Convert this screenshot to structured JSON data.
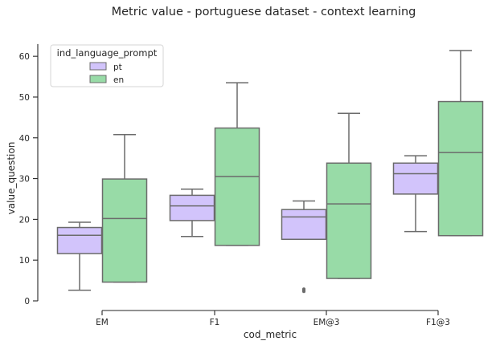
{
  "chart_data": {
    "type": "box",
    "title": "Metric value - portuguese dataset - context learning",
    "xlabel": "cod_metric",
    "ylabel": "value_question",
    "categories": [
      "EM",
      "F1",
      "EM@3",
      "F1@3"
    ],
    "ylim": [
      0,
      63
    ],
    "yticks": [
      0,
      10,
      20,
      30,
      40,
      50,
      60
    ],
    "grid": false,
    "legend": {
      "title": "ind_language_prompt",
      "placement": "top-left"
    },
    "series": [
      {
        "name": "pt",
        "color": "#d2c4fb",
        "boxes": [
          {
            "whisker_low": 2.6,
            "q1": 11.6,
            "median": 16.1,
            "q3": 18.0,
            "whisker_high": 19.3,
            "outliers": []
          },
          {
            "whisker_low": 15.8,
            "q1": 19.7,
            "median": 23.3,
            "q3": 25.9,
            "whisker_high": 27.4,
            "outliers": []
          },
          {
            "whisker_low": 15.1,
            "q1": 15.1,
            "median": 20.6,
            "q3": 22.4,
            "whisker_high": 24.5,
            "outliers": [
              2.6
            ]
          },
          {
            "whisker_low": 17.0,
            "q1": 26.2,
            "median": 31.2,
            "q3": 33.8,
            "whisker_high": 35.6,
            "outliers": []
          }
        ]
      },
      {
        "name": "en",
        "color": "#98dba7",
        "boxes": [
          {
            "whisker_low": 4.6,
            "q1": 4.6,
            "median": 20.2,
            "q3": 29.9,
            "whisker_high": 40.8,
            "outliers": []
          },
          {
            "whisker_low": 13.6,
            "q1": 13.6,
            "median": 30.5,
            "q3": 42.4,
            "whisker_high": 53.5,
            "outliers": []
          },
          {
            "whisker_low": 5.5,
            "q1": 5.5,
            "median": 23.8,
            "q3": 33.8,
            "whisker_high": 46.0,
            "outliers": []
          },
          {
            "whisker_low": 16.0,
            "q1": 16.0,
            "median": 36.4,
            "q3": 48.9,
            "whisker_high": 61.4,
            "outliers": []
          }
        ]
      }
    ]
  }
}
